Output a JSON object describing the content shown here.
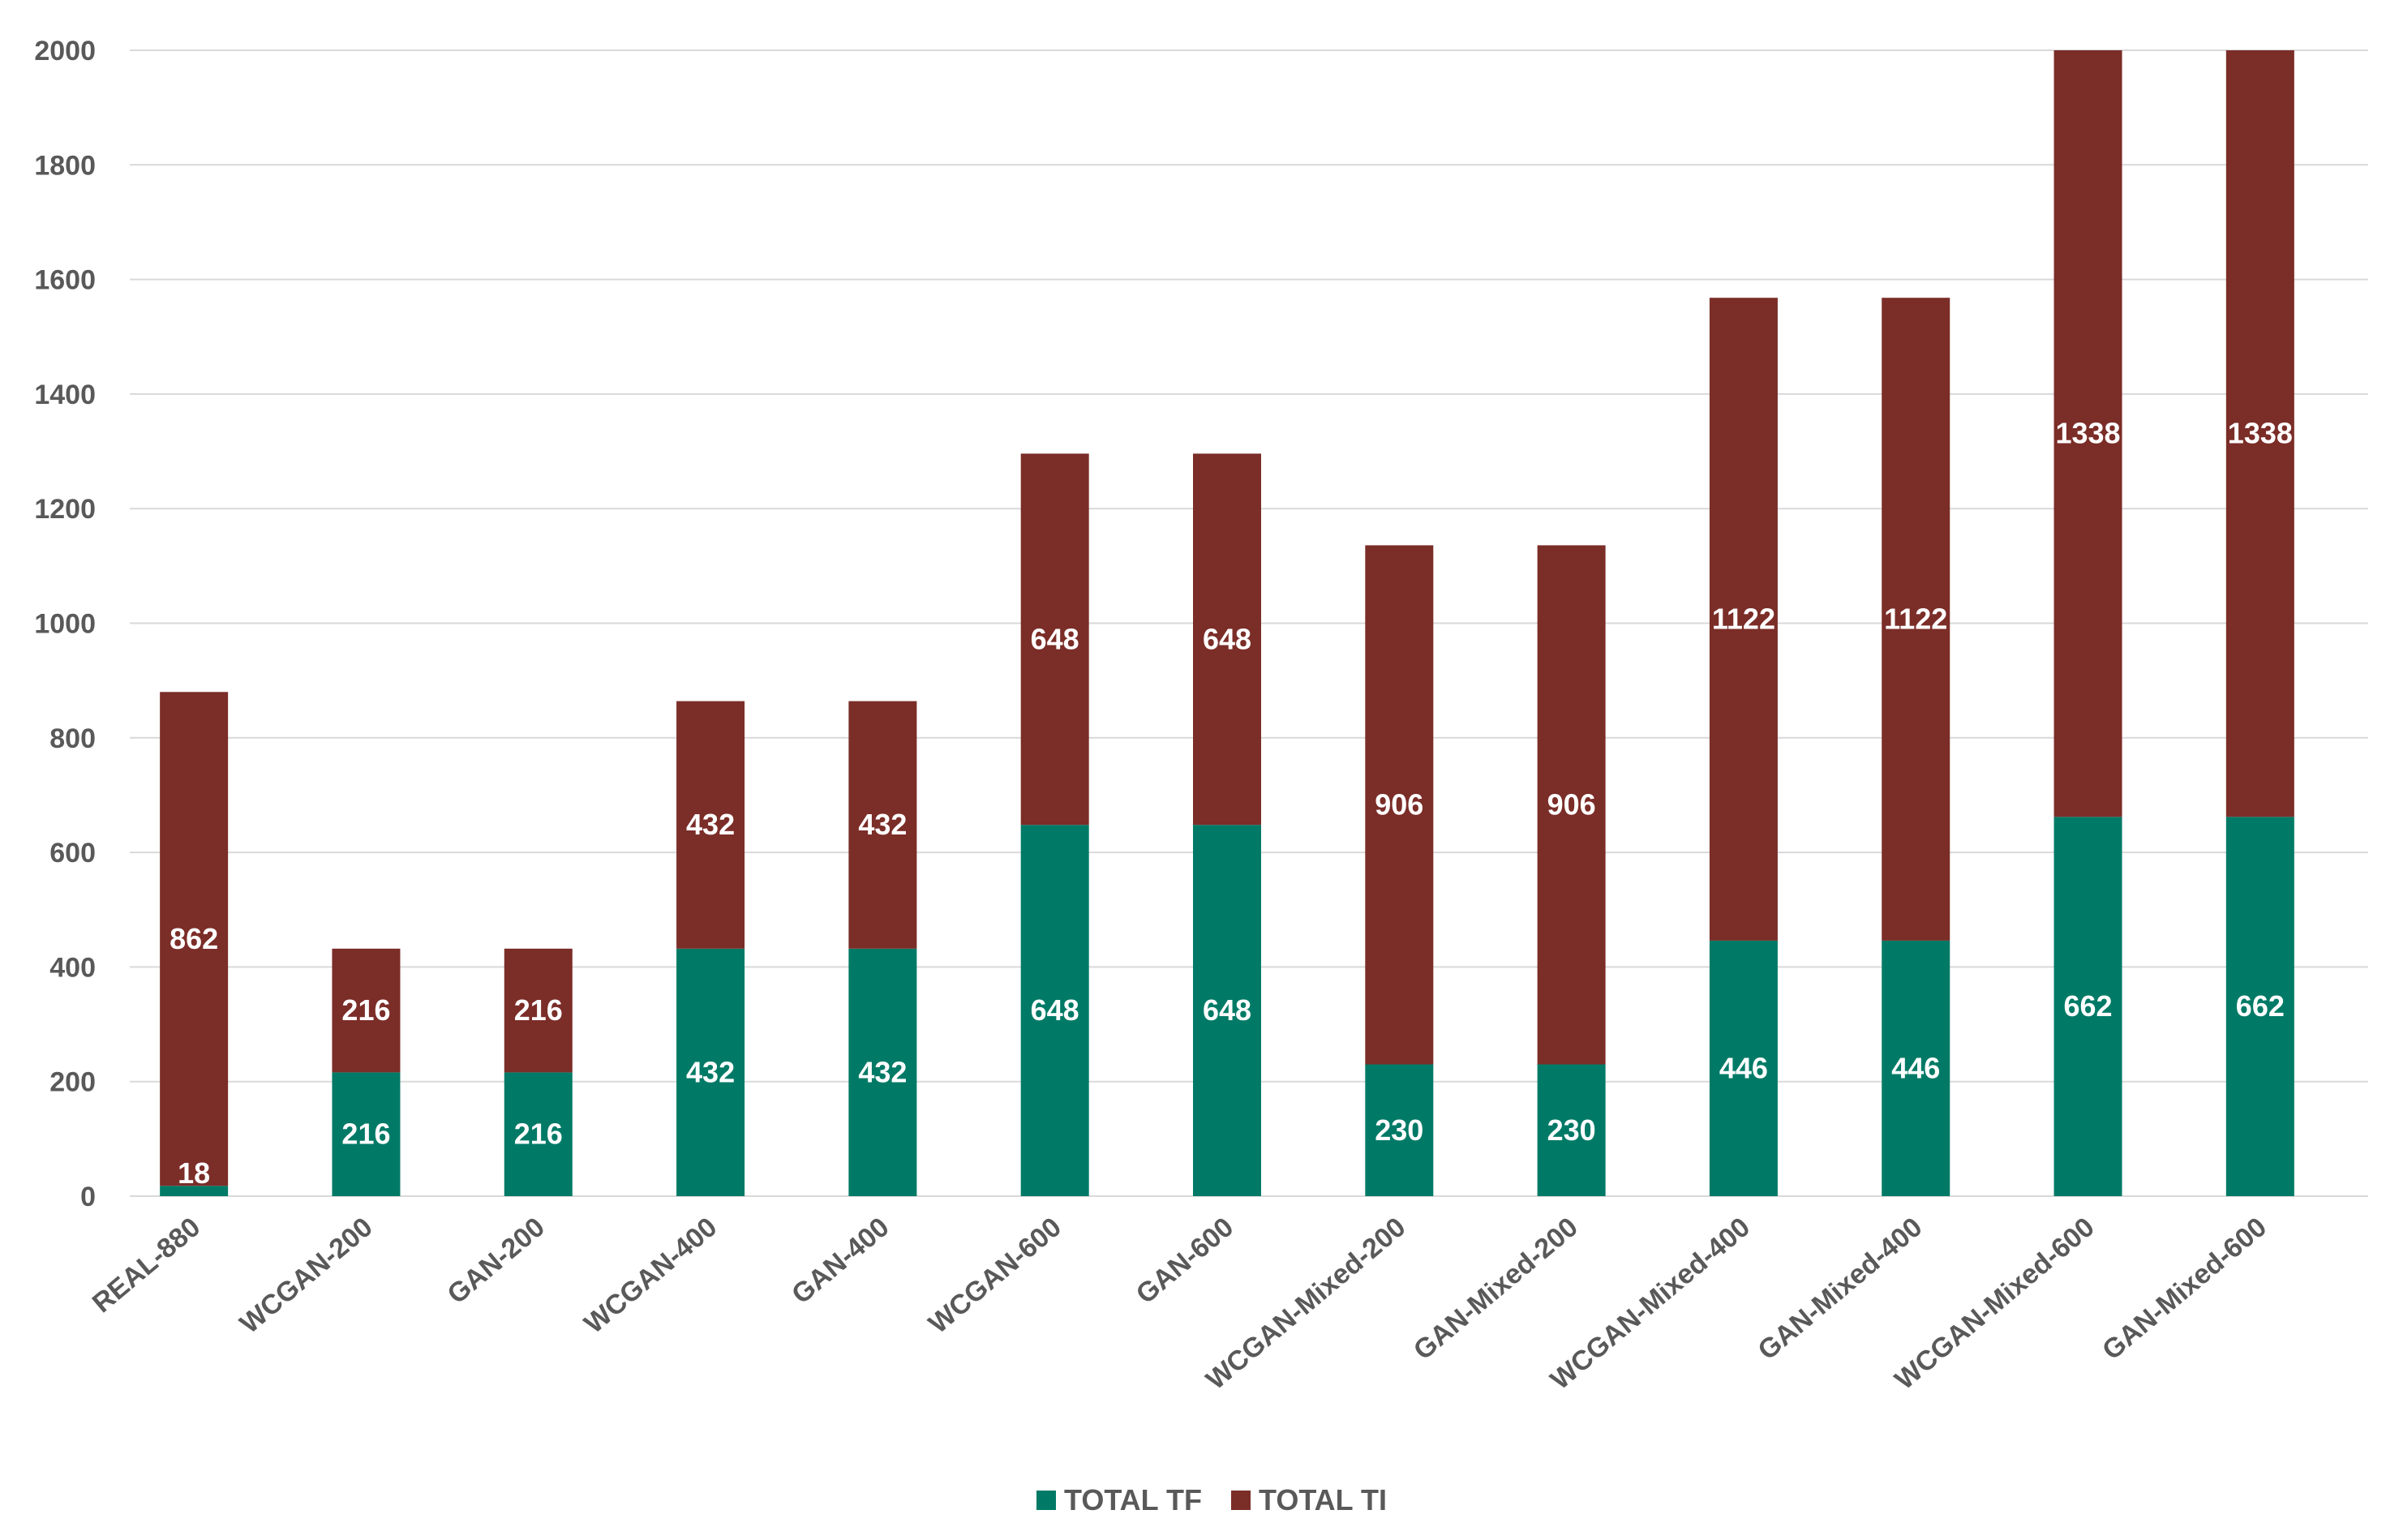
{
  "chart_data": {
    "type": "bar",
    "stacked": true,
    "title": "",
    "xlabel": "",
    "ylabel": "",
    "ylim": [
      0,
      2000
    ],
    "yticks": [
      0,
      200,
      400,
      600,
      800,
      1000,
      1200,
      1400,
      1600,
      1800,
      2000
    ],
    "grid": true,
    "legend_position": "bottom",
    "categories": [
      "REAL-880",
      "WCGAN-200",
      "GAN-200",
      "WCGAN-400",
      "GAN-400",
      "WCGAN-600",
      "GAN-600",
      "WCGAN-Mixed-200",
      "GAN-Mixed-200",
      "WCGAN-Mixed-400",
      "GAN-Mixed-400",
      "WCGAN-Mixed-600",
      "GAN-Mixed-600"
    ],
    "series": [
      {
        "name": "TOTAL TF",
        "color": "#007A66",
        "values": [
          18,
          216,
          216,
          432,
          432,
          648,
          648,
          230,
          230,
          446,
          446,
          662,
          662
        ]
      },
      {
        "name": "TOTAL TI",
        "color": "#7B2D28",
        "values": [
          862,
          216,
          216,
          432,
          432,
          648,
          648,
          906,
          906,
          1122,
          1122,
          1338,
          1338
        ]
      }
    ]
  }
}
